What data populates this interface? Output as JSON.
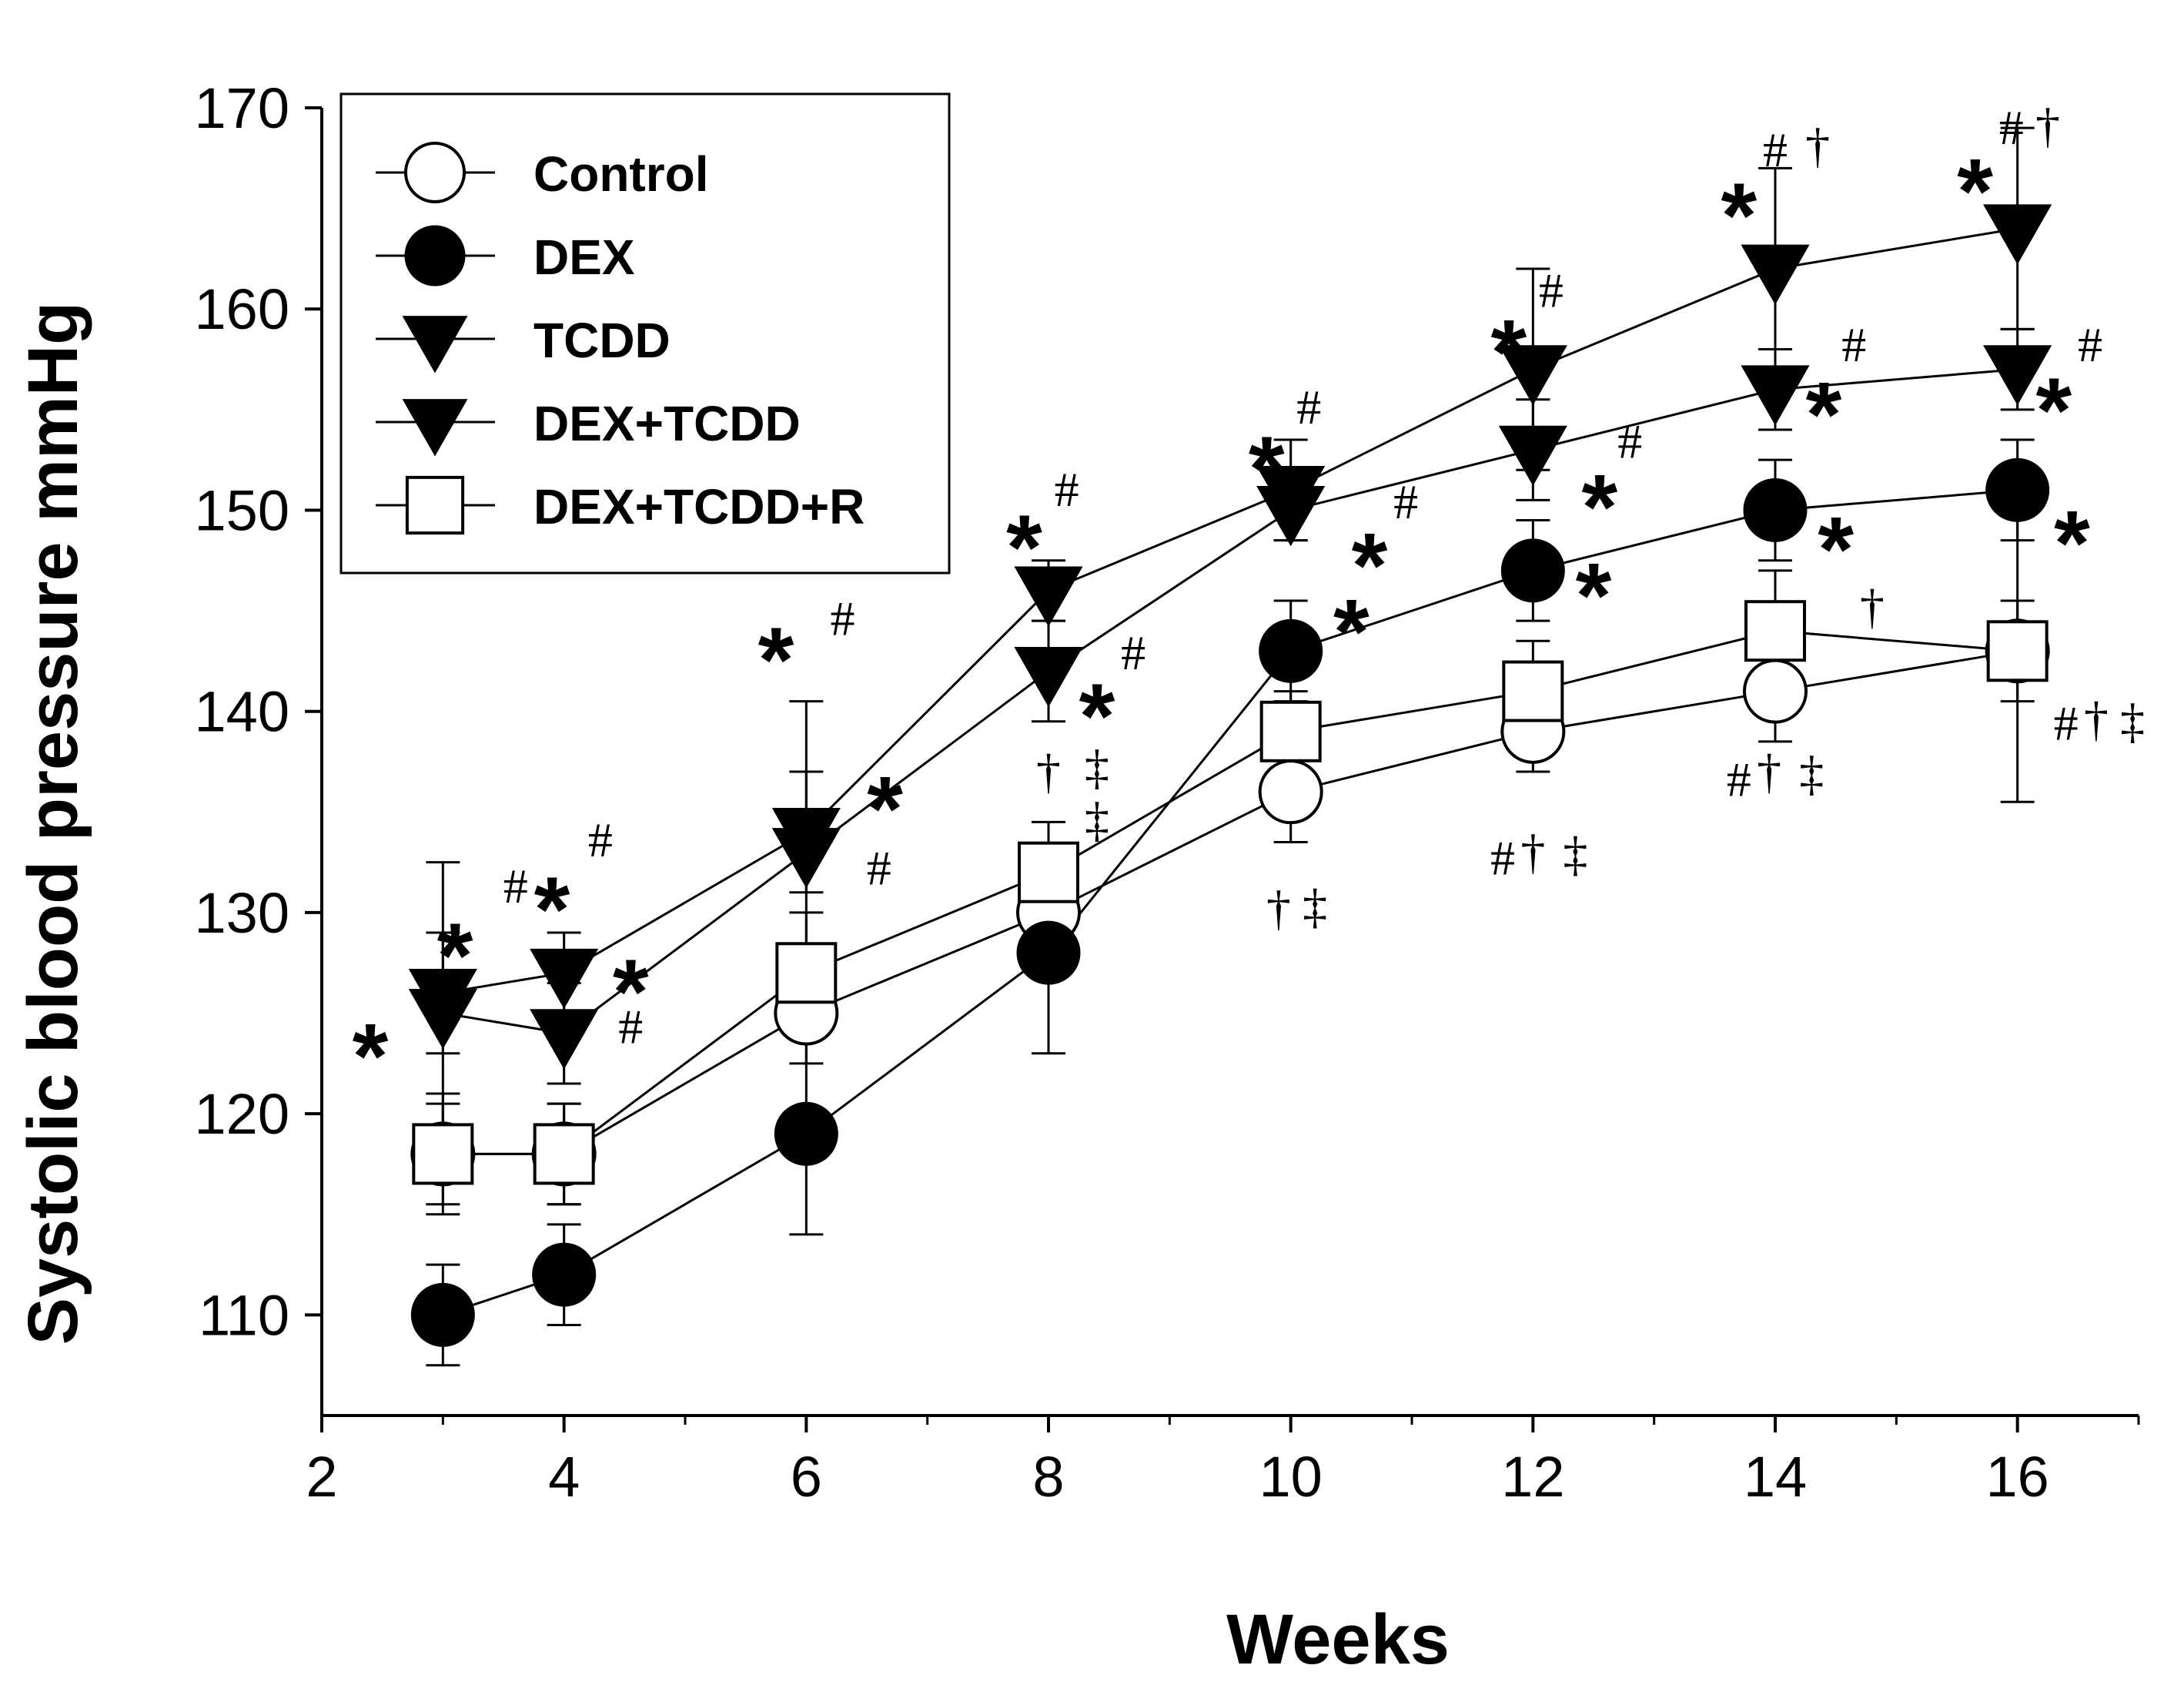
{
  "chart_data": {
    "type": "line",
    "title": "",
    "xlabel": "Weeks",
    "ylabel": "Systolic blood pressure mmHg",
    "xlim": [
      2,
      17
    ],
    "ylim": [
      105,
      170
    ],
    "x_ticks": [
      2,
      4,
      6,
      8,
      10,
      12,
      14,
      16
    ],
    "y_ticks": [
      110,
      120,
      130,
      140,
      150,
      160,
      170
    ],
    "x": [
      3,
      4,
      6,
      8,
      10,
      12,
      14,
      16
    ],
    "legend_position": "top-left",
    "series": [
      {
        "name": "Control",
        "marker": "circle-open",
        "values": [
          118,
          118,
          125,
          130,
          136,
          139,
          141,
          143
        ],
        "errors": [
          3,
          2.5,
          2.5,
          2,
          2.5,
          2,
          2.5,
          2.5
        ]
      },
      {
        "name": "DEX",
        "marker": "circle-filled",
        "values": [
          110,
          112,
          119,
          128,
          143,
          147,
          150,
          151
        ],
        "errors": [
          2.5,
          2.5,
          5,
          5,
          2.5,
          2.5,
          2.5,
          2.5
        ]
      },
      {
        "name": "TCDD",
        "marker": "triangle-down-filled",
        "values": [
          126,
          127,
          134,
          146,
          151,
          157,
          162,
          164
        ],
        "errors": [
          3,
          2,
          3,
          1.5,
          2.5,
          5,
          5,
          5
        ]
      },
      {
        "name": "DEX+TCDD",
        "marker": "triangle-down-filled",
        "values": [
          125,
          124,
          133,
          142,
          150,
          153,
          156,
          157
        ],
        "errors": [
          7.5,
          2.5,
          7.5,
          2.5,
          1.5,
          2.5,
          2,
          2
        ]
      },
      {
        "name": "DEX+TCDD+R",
        "marker": "square-open",
        "values": [
          118,
          118,
          127,
          132,
          139,
          141,
          144,
          143
        ],
        "errors": [
          2.5,
          2.5,
          3,
          2.5,
          2,
          2.5,
          3,
          7.5
        ]
      }
    ],
    "annotations": [
      {
        "text": "*",
        "x": 3.1,
        "y": 128.5,
        "style": "star"
      },
      {
        "text": "#",
        "x": 3.6,
        "y": 130.5,
        "style": "sym"
      },
      {
        "text": "*",
        "x": 2.4,
        "y": 123.5,
        "style": "star"
      },
      {
        "text": "#",
        "x": 2.95,
        "y": 125.5,
        "style": "sym"
      },
      {
        "text": "*",
        "x": 3.9,
        "y": 130.8,
        "style": "star"
      },
      {
        "text": "#",
        "x": 4.3,
        "y": 132.8,
        "style": "sym"
      },
      {
        "text": "*",
        "x": 4.55,
        "y": 126.7,
        "style": "star"
      },
      {
        "text": "#",
        "x": 4.55,
        "y": 123.5,
        "style": "sym"
      },
      {
        "text": "*",
        "x": 5.75,
        "y": 143.2,
        "style": "star"
      },
      {
        "text": "#",
        "x": 6.3,
        "y": 143.8,
        "style": "sym"
      },
      {
        "text": "*",
        "x": 6.65,
        "y": 135.8,
        "style": "star"
      },
      {
        "text": "#",
        "x": 6.6,
        "y": 131.4,
        "style": "sym"
      },
      {
        "text": "*",
        "x": 7.8,
        "y": 148.8,
        "style": "star"
      },
      {
        "text": "#",
        "x": 8.15,
        "y": 150.2,
        "style": "sym"
      },
      {
        "text": "*",
        "x": 8.4,
        "y": 140.4,
        "style": "star"
      },
      {
        "text": "#",
        "x": 8.7,
        "y": 142.1,
        "style": "sym"
      },
      {
        "text": "†",
        "x": 8.0,
        "y": 136.2,
        "style": "sym"
      },
      {
        "text": "‡",
        "x": 8.4,
        "y": 136.4,
        "style": "sym"
      },
      {
        "text": "‡",
        "x": 8.4,
        "y": 133.8,
        "style": "sym"
      },
      {
        "text": "*",
        "x": 9.8,
        "y": 152.7,
        "style": "star"
      },
      {
        "text": "#",
        "x": 10.15,
        "y": 154.3,
        "style": "sym"
      },
      {
        "text": "*",
        "x": 10.65,
        "y": 147.9,
        "style": "star"
      },
      {
        "text": "#",
        "x": 10.95,
        "y": 149.6,
        "style": "sym"
      },
      {
        "text": "*",
        "x": 10.5,
        "y": 144.6,
        "style": "star"
      },
      {
        "text": "†",
        "x": 9.9,
        "y": 129.4,
        "style": "sym"
      },
      {
        "text": "‡",
        "x": 10.2,
        "y": 129.5,
        "style": "sym"
      },
      {
        "text": "*",
        "x": 11.8,
        "y": 158.5,
        "style": "star"
      },
      {
        "text": "#",
        "x": 12.15,
        "y": 160.1,
        "style": "sym"
      },
      {
        "text": "*",
        "x": 12.55,
        "y": 150.8,
        "style": "star"
      },
      {
        "text": "#",
        "x": 12.8,
        "y": 152.6,
        "style": "sym"
      },
      {
        "text": "*",
        "x": 12.5,
        "y": 146.4,
        "style": "star"
      },
      {
        "text": "#",
        "x": 11.75,
        "y": 131.9,
        "style": "sym"
      },
      {
        "text": "†",
        "x": 12.0,
        "y": 132.2,
        "style": "sym"
      },
      {
        "text": "‡",
        "x": 12.35,
        "y": 132.1,
        "style": "sym"
      },
      {
        "text": "*",
        "x": 13.7,
        "y": 165.3,
        "style": "star"
      },
      {
        "text": "#",
        "x": 14.0,
        "y": 167.1,
        "style": "sym"
      },
      {
        "text": "†",
        "x": 14.35,
        "y": 167.3,
        "style": "sym"
      },
      {
        "text": "*",
        "x": 14.4,
        "y": 155.4,
        "style": "star"
      },
      {
        "text": "#",
        "x": 14.65,
        "y": 157.4,
        "style": "sym"
      },
      {
        "text": "*",
        "x": 14.5,
        "y": 148.7,
        "style": "star"
      },
      {
        "text": "†",
        "x": 14.8,
        "y": 144.4,
        "style": "sym"
      },
      {
        "text": "#",
        "x": 13.7,
        "y": 135.8,
        "style": "sym"
      },
      {
        "text": "†",
        "x": 13.95,
        "y": 136.2,
        "style": "sym"
      },
      {
        "text": "‡",
        "x": 14.3,
        "y": 136.1,
        "style": "sym"
      },
      {
        "text": "*",
        "x": 15.65,
        "y": 166.5,
        "style": "star"
      },
      {
        "text": "#",
        "x": 15.95,
        "y": 168.2,
        "style": "sym"
      },
      {
        "text": "†",
        "x": 16.25,
        "y": 168.3,
        "style": "sym"
      },
      {
        "text": "*",
        "x": 16.3,
        "y": 155.6,
        "style": "star"
      },
      {
        "text": "#",
        "x": 16.6,
        "y": 157.4,
        "style": "sym"
      },
      {
        "text": "*",
        "x": 16.45,
        "y": 149.0,
        "style": "star"
      },
      {
        "text": "#",
        "x": 16.4,
        "y": 138.6,
        "style": "sym"
      },
      {
        "text": "†",
        "x": 16.65,
        "y": 138.8,
        "style": "sym"
      },
      {
        "text": "‡",
        "x": 16.95,
        "y": 138.7,
        "style": "sym"
      }
    ]
  }
}
